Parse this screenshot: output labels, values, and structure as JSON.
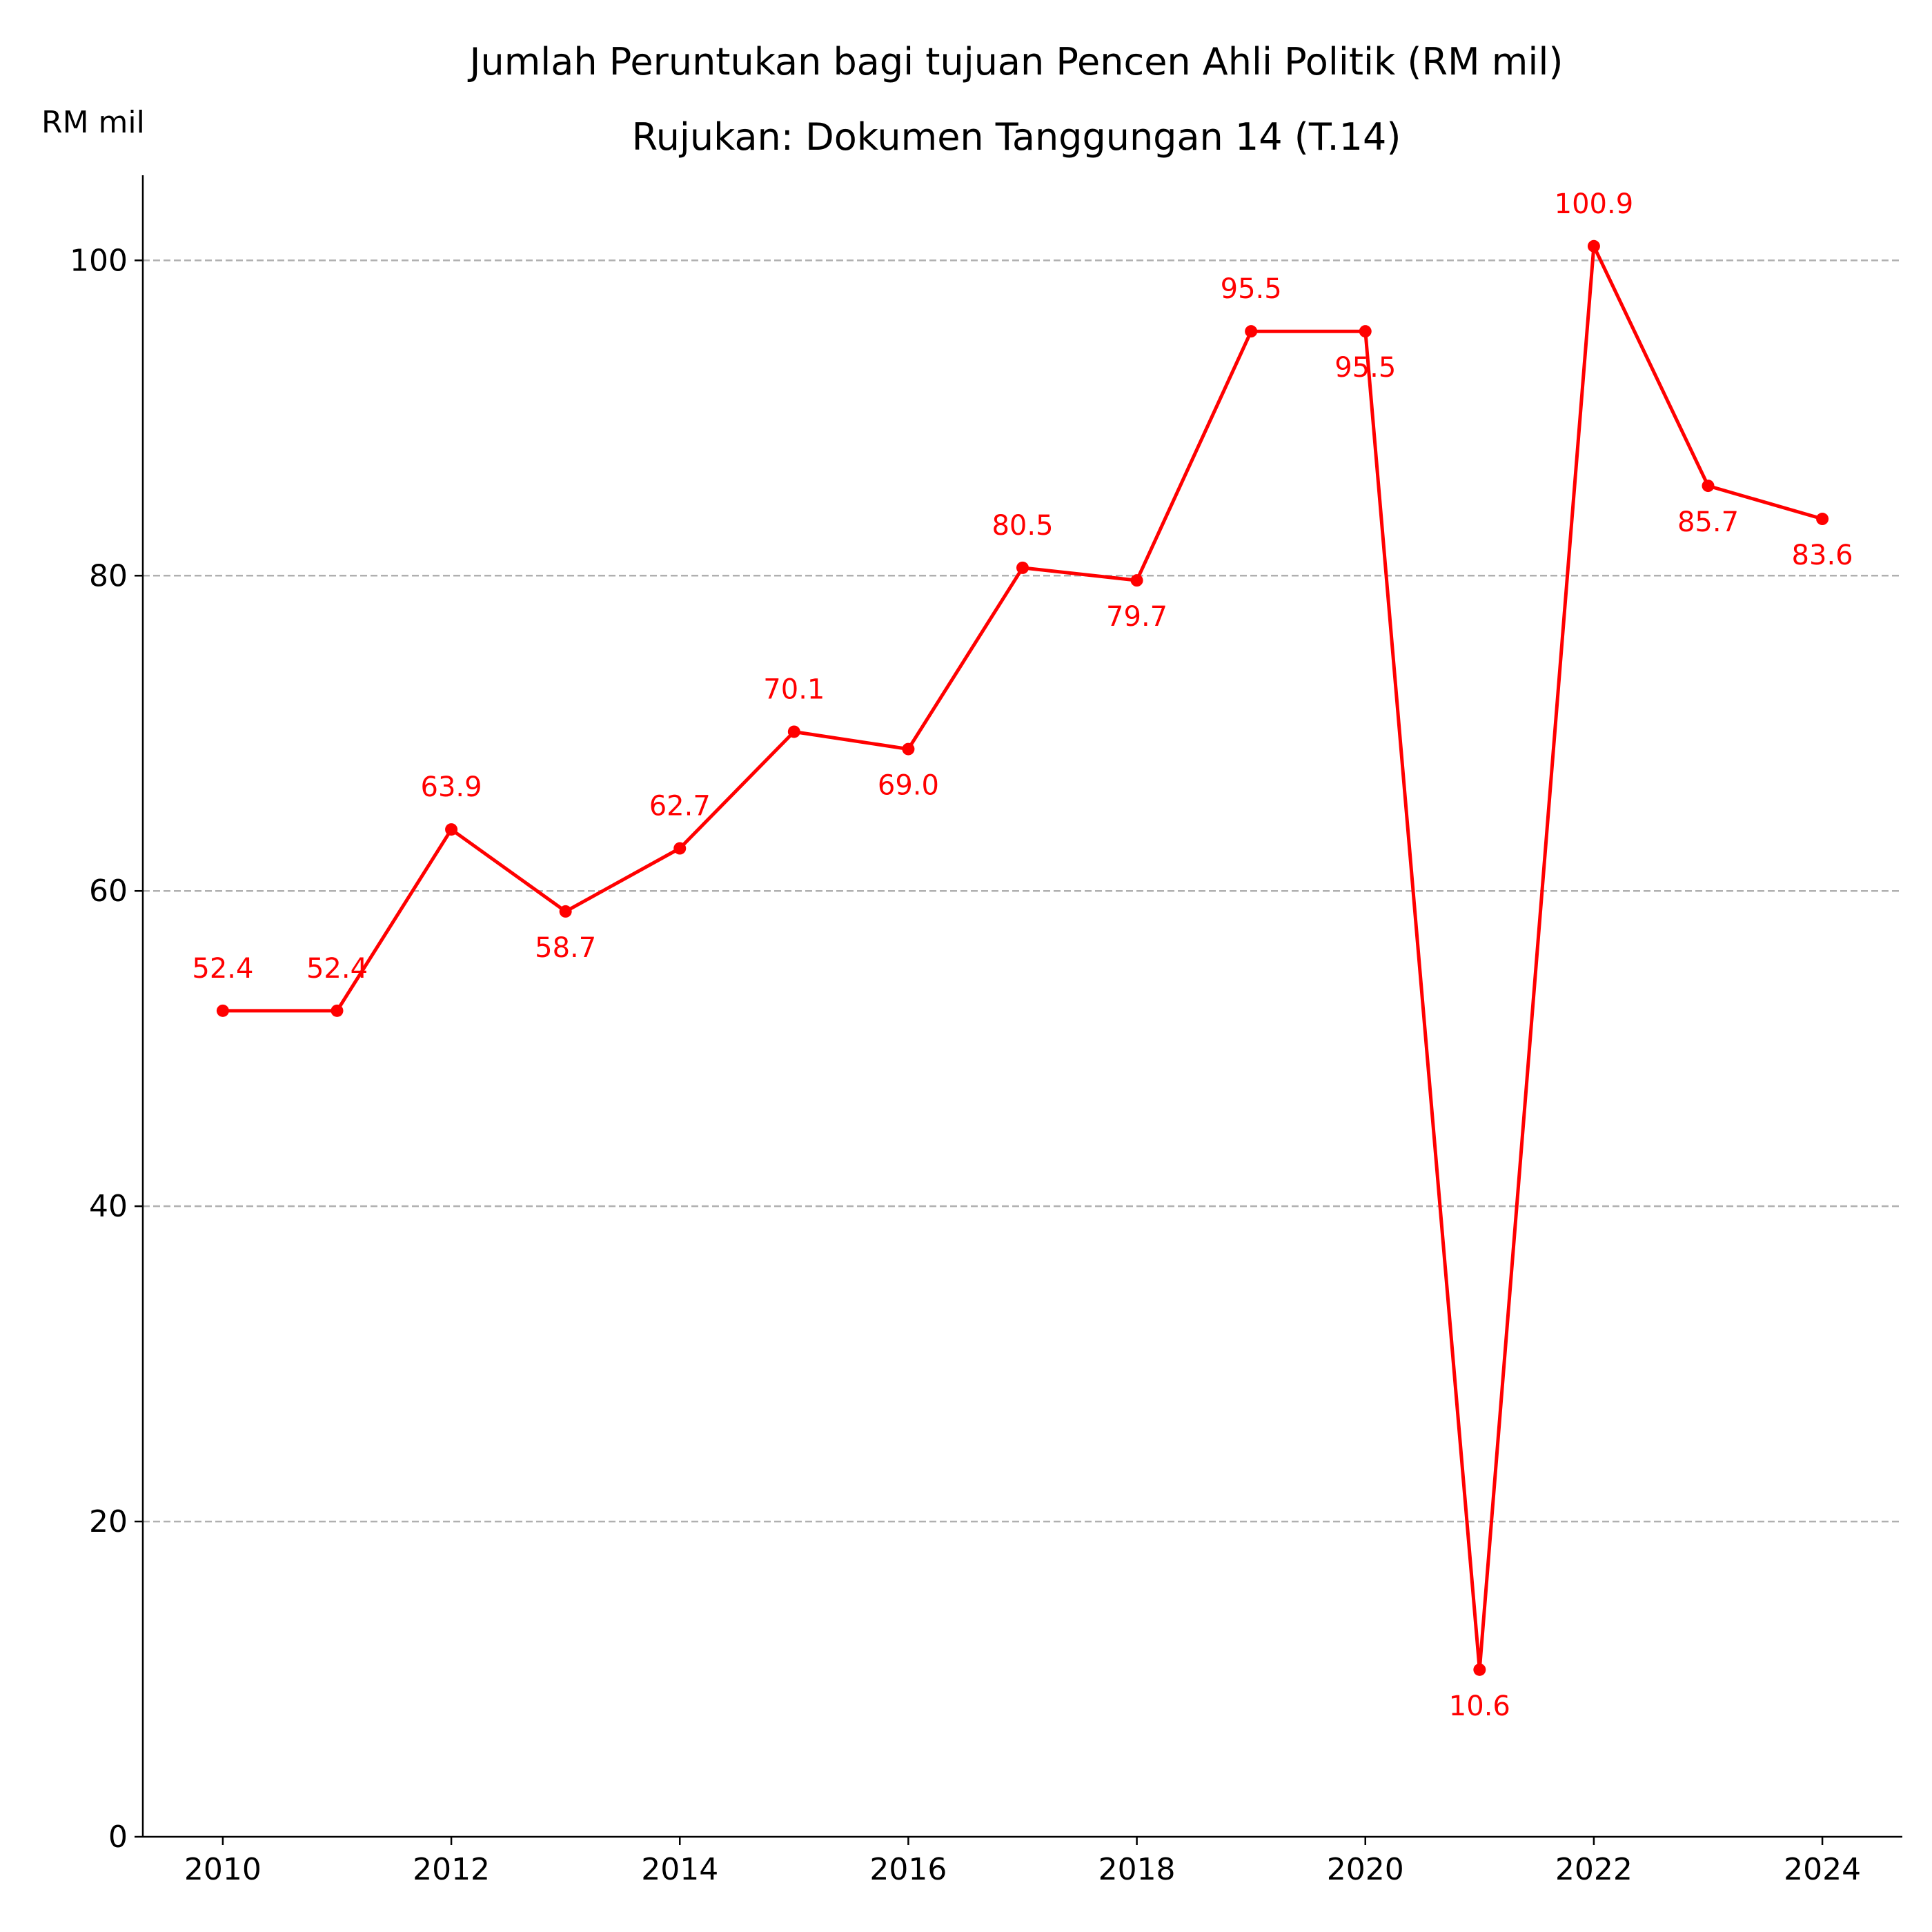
{
  "chart_data": {
    "type": "line",
    "title": "Jumlah Peruntukan bagi tujuan Pencen Ahli Politik (RM mil)",
    "subtitle": "Rujukan: Dokumen Tanggungan 14 (T.14)",
    "ylabel": "RM mil",
    "xlabel": "",
    "x": [
      2010,
      2011,
      2012,
      2013,
      2014,
      2015,
      2016,
      2017,
      2018,
      2019,
      2020,
      2021,
      2022,
      2023,
      2024
    ],
    "values": [
      52.4,
      52.4,
      63.9,
      58.7,
      62.7,
      70.1,
      69.0,
      80.5,
      79.7,
      95.5,
      95.5,
      10.6,
      100.9,
      85.7,
      83.6
    ],
    "data_labels": [
      "52.4",
      "52.4",
      "63.9",
      "58.7",
      "62.7",
      "70.1",
      "69.0",
      "80.5",
      "79.7",
      "95.5",
      "95.5",
      "10.6",
      "100.9",
      "85.7",
      "83.6"
    ],
    "label_side": [
      "above",
      "above",
      "above",
      "below",
      "above",
      "above",
      "below",
      "above",
      "below",
      "above",
      "below",
      "below",
      "above",
      "below",
      "below"
    ],
    "xlim": [
      2009.3,
      2024.7
    ],
    "ylim": [
      0,
      105.4
    ],
    "x_ticks": [
      2010,
      2012,
      2014,
      2016,
      2018,
      2020,
      2022,
      2024
    ],
    "x_tick_labels": [
      "2010",
      "2012",
      "2014",
      "2016",
      "2018",
      "2020",
      "2022",
      "2024"
    ],
    "y_ticks": [
      0,
      20,
      40,
      60,
      80,
      100
    ],
    "y_tick_labels": [
      "0",
      "20",
      "40",
      "60",
      "80",
      "100"
    ],
    "grid": "horizontal dashed",
    "legend": "none",
    "colors": {
      "line": "#ff0000",
      "grid": "#b0b0b0",
      "axis": "#000000"
    }
  }
}
